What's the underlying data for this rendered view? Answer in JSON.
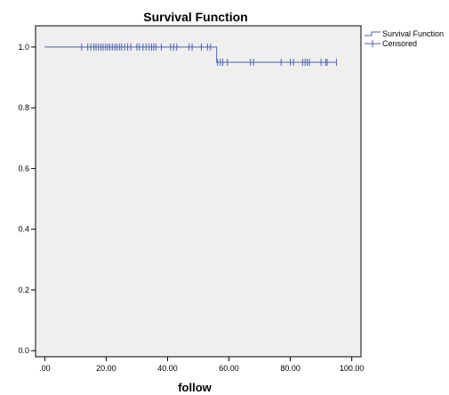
{
  "chart_data": {
    "type": "line",
    "title": "Survival Function",
    "xlabel": "follow",
    "ylabel": "",
    "xlim": [
      -3,
      103
    ],
    "ylim": [
      -0.02,
      1.07
    ],
    "x_ticks": [
      0,
      20,
      40,
      60,
      80,
      100
    ],
    "x_tick_labels": [
      ".00",
      "20.00",
      "40.00",
      "60.00",
      "80.00",
      "100.00"
    ],
    "y_ticks": [
      0.0,
      0.2,
      0.4,
      0.6,
      0.8,
      1.0
    ],
    "y_tick_labels": [
      "0.0",
      "0.2",
      "0.4",
      "0.6",
      "0.8",
      "1.0"
    ],
    "grid": false,
    "legend_position": "top-right",
    "colors": {
      "line": "#4a5fb0",
      "plot_bg": "#efefef",
      "axis": "#000000"
    },
    "series": [
      {
        "name": "Survival Function",
        "kind": "step",
        "x": [
          0,
          56,
          95
        ],
        "y": [
          1.0,
          0.95,
          0.95
        ]
      },
      {
        "name": "Censored",
        "kind": "censor-marks",
        "x": [
          12,
          14,
          15,
          16,
          16.7,
          17.5,
          18.3,
          19,
          19.8,
          20.5,
          21.2,
          22,
          22.8,
          23.5,
          24.3,
          25,
          26,
          27,
          28,
          30,
          30.8,
          32,
          33,
          34,
          34.8,
          35.5,
          36.2,
          38,
          41,
          42,
          43,
          47,
          48,
          51,
          53,
          54,
          56.3,
          57.2,
          58,
          59.5,
          67,
          68,
          77,
          80,
          81,
          84,
          84.8,
          85.5,
          86.2,
          90,
          91.5,
          92,
          95
        ],
        "y": [
          1.0,
          1.0,
          1.0,
          1.0,
          1.0,
          1.0,
          1.0,
          1.0,
          1.0,
          1.0,
          1.0,
          1.0,
          1.0,
          1.0,
          1.0,
          1.0,
          1.0,
          1.0,
          1.0,
          1.0,
          1.0,
          1.0,
          1.0,
          1.0,
          1.0,
          1.0,
          1.0,
          1.0,
          1.0,
          1.0,
          1.0,
          1.0,
          1.0,
          1.0,
          1.0,
          1.0,
          0.95,
          0.95,
          0.95,
          0.95,
          0.95,
          0.95,
          0.95,
          0.95,
          0.95,
          0.95,
          0.95,
          0.95,
          0.95,
          0.95,
          0.95,
          0.95,
          0.95
        ]
      }
    ]
  }
}
